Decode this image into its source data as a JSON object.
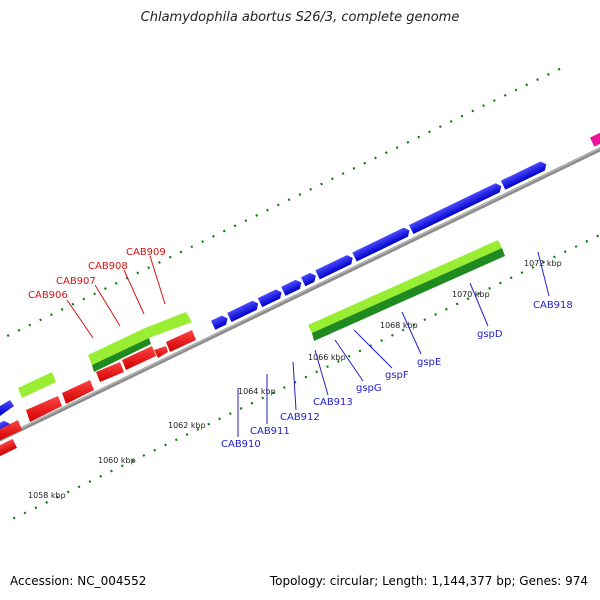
{
  "title": "Chlamydophila abortus S26/3, complete genome",
  "footer": {
    "accession": "Accession: NC_004552",
    "summary": "Topology: circular; Length: 1,144,377 bp; Genes: 974"
  },
  "colors": {
    "forward_cds": "#0000e6",
    "reverse_cds": "#ee0000",
    "light_green": "#99ee33",
    "dark_green": "#1f8a1f",
    "backbone": "#8c8c8c",
    "tick": "#0a7a0a",
    "steel_blue": "#4a7fa8",
    "magenta": "#ee1199"
  },
  "scale_labels": [
    "1058 kbp",
    "1060 kbp",
    "1062 kbp",
    "1064 kbp",
    "1066 kbp",
    "1068 kbp",
    "1070 kbp",
    "1072 kbp"
  ],
  "gene_labels": {
    "CAB906": "CAB906",
    "CAB907": "CAB907",
    "CAB908": "CAB908",
    "CAB909": "CAB909",
    "CAB910": "CAB910",
    "CAB911": "CAB911",
    "CAB912": "CAB912",
    "CAB913": "CAB913",
    "gspG": "gspG",
    "gspF": "gspF",
    "gspE": "gspE",
    "gspD": "gspD",
    "CAB918": "CAB918"
  }
}
